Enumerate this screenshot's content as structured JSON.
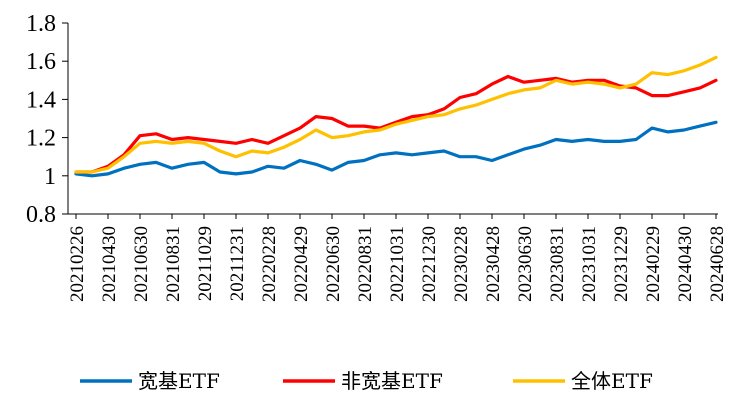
{
  "chart_data": {
    "type": "line",
    "title": "",
    "xlabel": "",
    "ylabel": "",
    "ylim": [
      0.8,
      1.8
    ],
    "yticks": [
      "0.8",
      "1",
      "1.2",
      "1.4",
      "1.6",
      "1.8"
    ],
    "grid": false,
    "legend_position": "bottom",
    "x": [
      "20210226",
      "20210331",
      "20210430",
      "20210531",
      "20210630",
      "20210730",
      "20210831",
      "20210930",
      "20211029",
      "20211130",
      "20211231",
      "20220128",
      "20220228",
      "20220331",
      "20220429",
      "20220531",
      "20220630",
      "20220729",
      "20220831",
      "20220930",
      "20221031",
      "20221130",
      "20221230",
      "20230131",
      "20230228",
      "20230331",
      "20230428",
      "20230531",
      "20230630",
      "20230731",
      "20230831",
      "20230929",
      "20231031",
      "20231130",
      "20231229",
      "20240131",
      "20240229",
      "20240329",
      "20240430",
      "20240531",
      "20240628"
    ],
    "xtick_labels": [
      "20210226",
      "20210430",
      "20210630",
      "20210831",
      "20211029",
      "20211231",
      "20220228",
      "20220429",
      "20220630",
      "20220831",
      "20221031",
      "20221230",
      "20230228",
      "20230428",
      "20230630",
      "20230831",
      "20231031",
      "20231229",
      "20240229",
      "20240430",
      "20240628"
    ],
    "series": [
      {
        "name": "宽基ETF",
        "color": "#0070C0",
        "values": [
          1.01,
          1.0,
          1.01,
          1.04,
          1.06,
          1.07,
          1.04,
          1.06,
          1.07,
          1.02,
          1.01,
          1.02,
          1.05,
          1.04,
          1.08,
          1.06,
          1.03,
          1.07,
          1.08,
          1.11,
          1.12,
          1.11,
          1.12,
          1.13,
          1.1,
          1.1,
          1.08,
          1.11,
          1.14,
          1.16,
          1.19,
          1.18,
          1.19,
          1.18,
          1.18,
          1.19,
          1.25,
          1.23,
          1.24,
          1.26,
          1.28
        ]
      },
      {
        "name": "非宽基ETF",
        "color": "#FF0000",
        "values": [
          1.02,
          1.02,
          1.05,
          1.11,
          1.21,
          1.22,
          1.19,
          1.2,
          1.19,
          1.18,
          1.17,
          1.19,
          1.17,
          1.21,
          1.25,
          1.31,
          1.3,
          1.26,
          1.26,
          1.25,
          1.28,
          1.31,
          1.32,
          1.35,
          1.41,
          1.43,
          1.48,
          1.52,
          1.49,
          1.5,
          1.51,
          1.49,
          1.5,
          1.5,
          1.47,
          1.46,
          1.42,
          1.42,
          1.44,
          1.46,
          1.5
        ]
      },
      {
        "name": "全体ETF",
        "color": "#FFC000",
        "values": [
          1.02,
          1.02,
          1.04,
          1.1,
          1.17,
          1.18,
          1.17,
          1.18,
          1.17,
          1.13,
          1.1,
          1.13,
          1.12,
          1.15,
          1.19,
          1.24,
          1.2,
          1.21,
          1.23,
          1.24,
          1.27,
          1.29,
          1.31,
          1.32,
          1.35,
          1.37,
          1.4,
          1.43,
          1.45,
          1.46,
          1.5,
          1.48,
          1.49,
          1.48,
          1.46,
          1.48,
          1.54,
          1.53,
          1.55,
          1.58,
          1.62
        ]
      }
    ]
  }
}
